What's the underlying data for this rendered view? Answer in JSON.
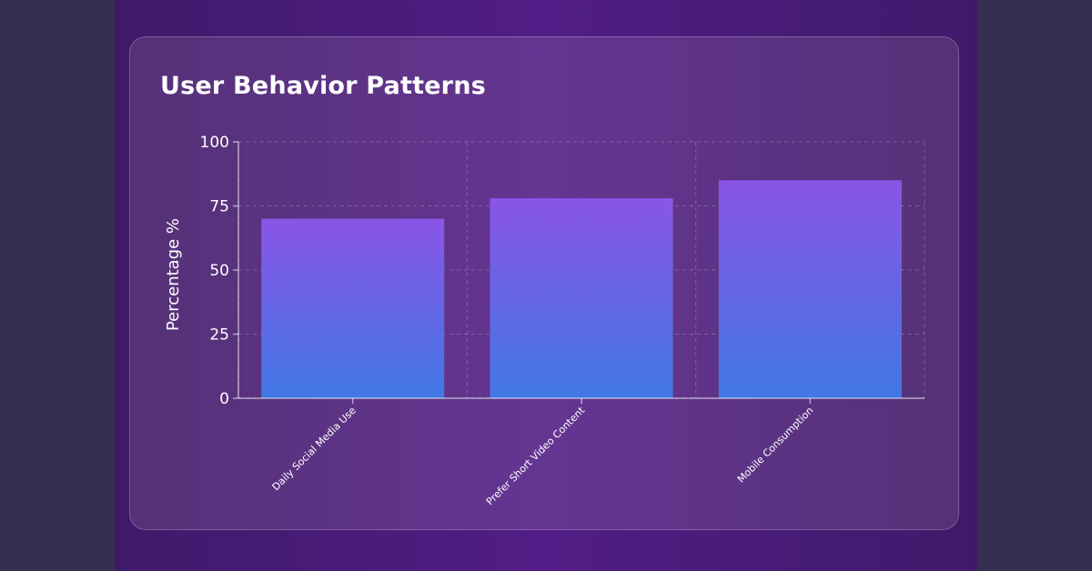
{
  "chart_data": {
    "type": "bar",
    "title": "User Behavior Patterns",
    "ylabel": "Percentage %",
    "xlabel": "",
    "categories": [
      "Daily Social Media Use",
      "Prefer Short Video Content",
      "Mobile Consumption"
    ],
    "values": [
      70,
      78,
      85
    ],
    "ylim": [
      0,
      100
    ],
    "yticks": [
      0,
      25,
      50,
      75,
      100
    ],
    "grid": true,
    "bar_gradient": [
      "#8a55e6",
      "#4178e4"
    ]
  }
}
